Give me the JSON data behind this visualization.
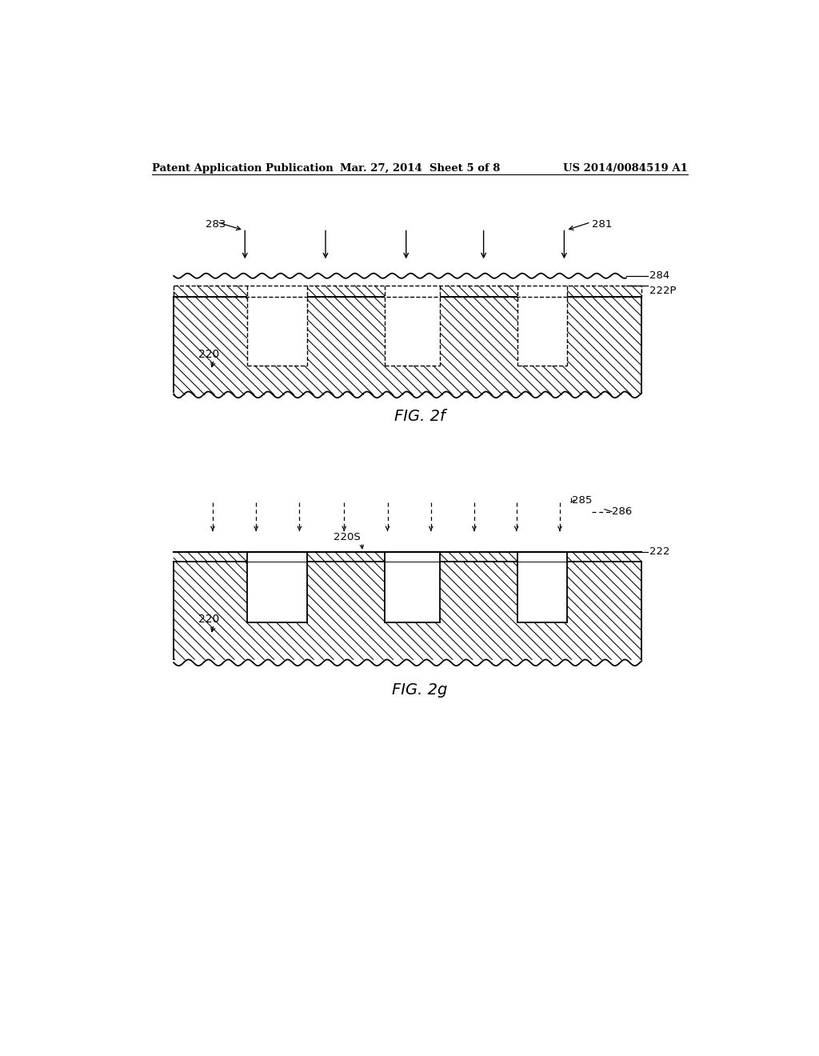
{
  "background_color": "#ffffff",
  "header_text": "Patent Application Publication",
  "header_date": "Mar. 27, 2014  Sheet 5 of 8",
  "header_patent": "US 2014/0084519 A1",
  "fig2f_label": "FIG. 2f",
  "fig2g_label": "FIG. 2g"
}
